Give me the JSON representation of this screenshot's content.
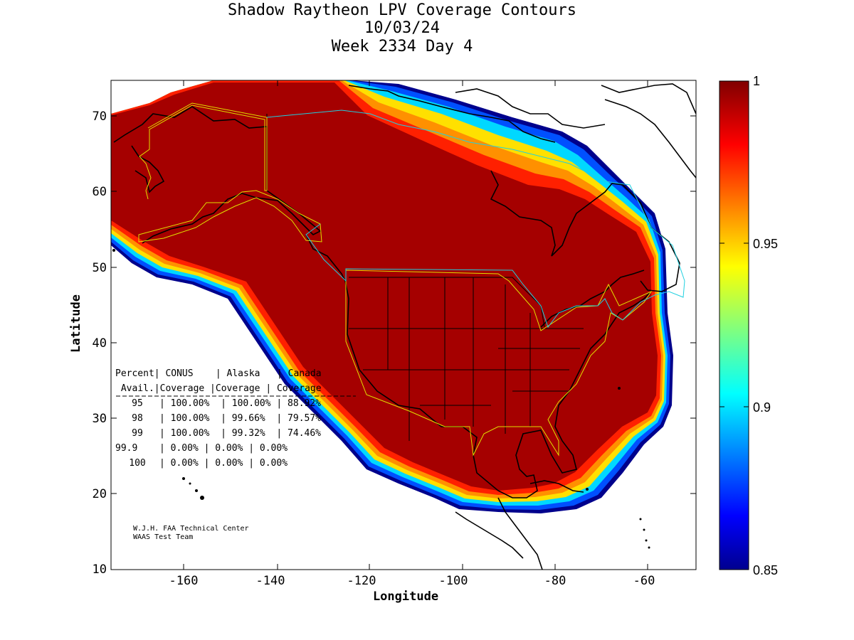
{
  "title": {
    "line1": "Shadow Raytheon LPV Coverage Contours",
    "line2": "10/03/24",
    "line3": "Week 2334 Day 4"
  },
  "axes": {
    "xlabel": "Longitude",
    "ylabel": "Latitude",
    "x_ticks": [
      "-160",
      "-140",
      "-120",
      "-100",
      "-80",
      "-60"
    ],
    "y_ticks": [
      "70",
      "60",
      "50",
      "40",
      "30",
      "20",
      "10"
    ]
  },
  "map": {
    "lon_range": [
      -175,
      -50
    ],
    "lat_range": [
      10,
      75
    ],
    "regions_outlined": [
      "CONUS",
      "Alaska",
      "Canada"
    ]
  },
  "colorbar": {
    "range": [
      0.85,
      1
    ],
    "ticks": [
      "1",
      "0.95",
      "0.9",
      "0.85"
    ],
    "colormap": "jet"
  },
  "table": {
    "header1": "Percent| CONUS    | Alaska   | Canada",
    "header2": " Avail.|Coverage |Coverage | Coverage",
    "rows": [
      {
        "avail": "95",
        "conus": "100.00%",
        "alaska": "100.00%",
        "canada": "88.92%"
      },
      {
        "avail": "98",
        "conus": "100.00%",
        "alaska": "99.66%",
        "canada": "79.57%"
      },
      {
        "avail": "99",
        "conus": "100.00%",
        "alaska": "99.32%",
        "canada": "74.46%"
      },
      {
        "avail": "99.9",
        "conus": "0.00%",
        "alaska": "0.00%",
        "canada": "0.00%"
      },
      {
        "avail": "100",
        "conus": "0.00%",
        "alaska": "0.00%",
        "canada": "0.00%"
      }
    ]
  },
  "credits": {
    "line1": "W.J.H. FAA Technical Center",
    "line2": "WAAS Test Team"
  },
  "colors": {
    "full_coverage": "#a50000",
    "edge_red": "#ff2000",
    "edge_orange": "#ff9000",
    "edge_yellow": "#ffe000",
    "edge_cyan": "#00d8ff",
    "edge_blue": "#0040ff",
    "edge_navy": "#00008c",
    "region_outline_yellow": "#e0e000",
    "region_outline_cyan": "#20d0e0"
  }
}
